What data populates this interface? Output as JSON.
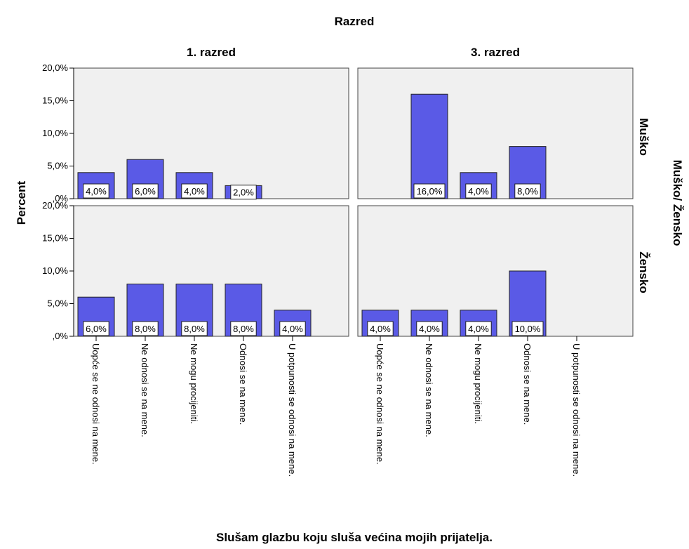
{
  "chart_data": {
    "type": "bar",
    "title": "Razred",
    "xlabel": "Slušam glazbu koju sluša većina mojih prijatelja.",
    "ylabel": "Percent",
    "row_title": "Muško/ Žensko",
    "columns": [
      "1. razred",
      "3. razred"
    ],
    "rows": [
      "Muško",
      "Žensko"
    ],
    "categories": [
      "Uopće se ne odnosi na mene.",
      "Ne odnosi se na mene.",
      "Ne mogu procijeniti.",
      "Odnosi se na mene.",
      "U potpunosti se odnosi na mene."
    ],
    "y_ticks": [
      "20,0%",
      "15,0%",
      "10,0%",
      "5,0%",
      ",0%"
    ],
    "ylim": [
      0,
      20
    ],
    "grid": false,
    "bar_color": "#5a5ae6",
    "panel_color": "#f0f0f0",
    "panels": [
      {
        "row": "Muško",
        "column": "1. razred",
        "values": [
          4.0,
          6.0,
          4.0,
          2.0,
          null
        ],
        "labels": [
          "4,0%",
          "6,0%",
          "4,0%",
          "2,0%",
          ""
        ]
      },
      {
        "row": "Muško",
        "column": "3. razred",
        "values": [
          null,
          16.0,
          4.0,
          8.0,
          null
        ],
        "labels": [
          "",
          "16,0%",
          "4,0%",
          "8,0%",
          ""
        ]
      },
      {
        "row": "Žensko",
        "column": "1. razred",
        "values": [
          6.0,
          8.0,
          8.0,
          8.0,
          4.0
        ],
        "labels": [
          "6,0%",
          "8,0%",
          "8,0%",
          "8,0%",
          "4,0%"
        ]
      },
      {
        "row": "Žensko",
        "column": "3. razred",
        "values": [
          4.0,
          4.0,
          4.0,
          10.0,
          null
        ],
        "labels": [
          "4,0%",
          "4,0%",
          "4,0%",
          "10,0%",
          ""
        ]
      }
    ]
  }
}
